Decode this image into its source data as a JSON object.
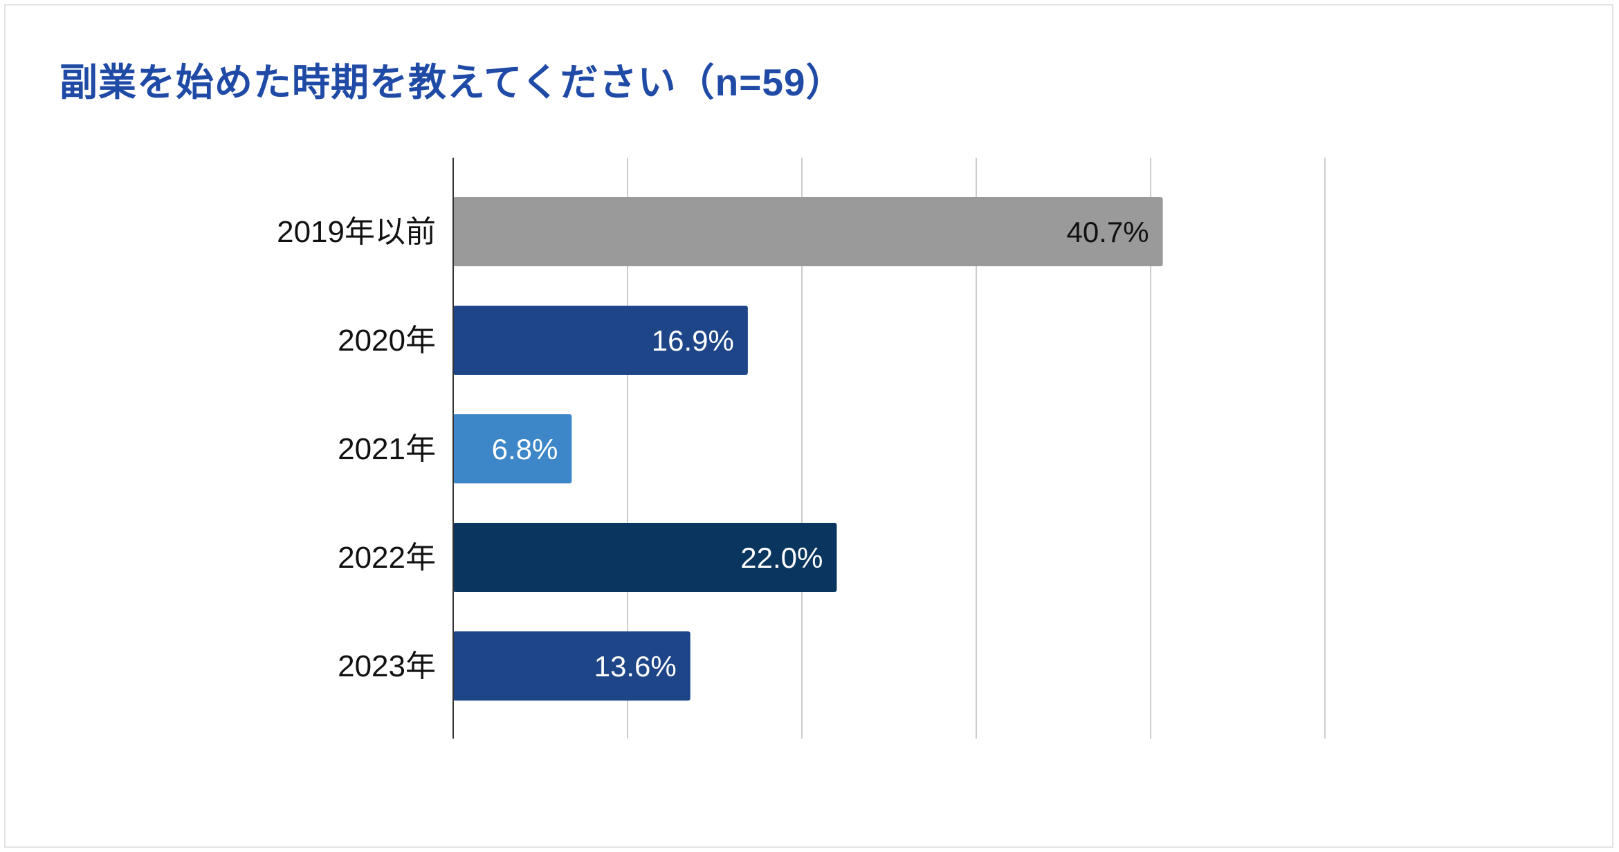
{
  "chart_data": {
    "type": "bar",
    "orientation": "horizontal",
    "title": "副業を始めた時期を教えてください（n=59）",
    "categories": [
      "2019年以前",
      "2020年",
      "2021年",
      "2022年",
      "2023年"
    ],
    "values": [
      40.7,
      16.9,
      6.8,
      22.0,
      13.6
    ],
    "value_labels": [
      "40.7%",
      "16.9%",
      "6.8%",
      "22.0%",
      "13.6%"
    ],
    "bar_colors": [
      "#9a9a9a",
      "#1d4588",
      "#3d87c9",
      "#09355f",
      "#1d4588"
    ],
    "label_colors": [
      "#111111",
      "#ffffff",
      "#ffffff",
      "#ffffff",
      "#ffffff"
    ],
    "xlim": [
      0,
      50
    ],
    "grid": true,
    "legend": "none"
  }
}
